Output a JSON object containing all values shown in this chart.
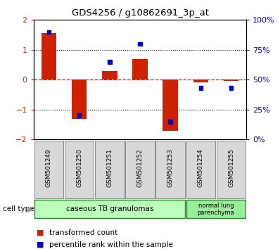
{
  "title": "GDS4256 / g10862691_3p_at",
  "samples": [
    "GSM501249",
    "GSM501250",
    "GSM501251",
    "GSM501252",
    "GSM501253",
    "GSM501254",
    "GSM501255"
  ],
  "red_values": [
    1.55,
    -1.3,
    0.3,
    0.7,
    -1.72,
    -0.08,
    -0.05
  ],
  "blue_values_pct": [
    90,
    20,
    65,
    80,
    15,
    43,
    43
  ],
  "ylim": [
    -2,
    2
  ],
  "yticks_left": [
    -2,
    -1,
    0,
    1,
    2
  ],
  "yticks_right_pct": [
    0,
    25,
    50,
    75,
    100
  ],
  "red_color": "#cc2200",
  "blue_color": "#0000cc",
  "group1_samples": [
    0,
    1,
    2,
    3,
    4
  ],
  "group2_samples": [
    5,
    6
  ],
  "group1_label": "caseous TB granulomas",
  "group2_label": "normal lung\nparenchyma",
  "group1_color": "#bbffbb",
  "group2_color": "#99ee99",
  "celltype_label": "cell type",
  "legend1_label": "transformed count",
  "legend2_label": "percentile rank within the sample",
  "bar_width": 0.5,
  "sq_size": 0.13
}
